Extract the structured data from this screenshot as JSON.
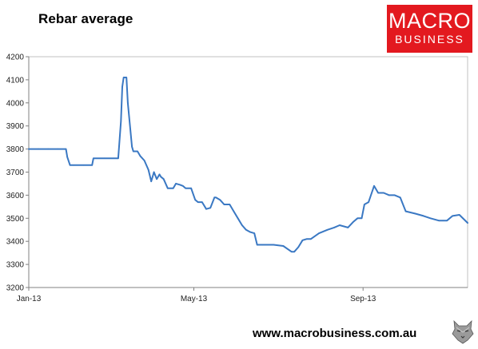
{
  "header": {
    "title": "Rebar average"
  },
  "logo": {
    "line1": "MACRO",
    "line2": "BUSINESS",
    "color": "#e3191f"
  },
  "footer": {
    "url": "www.macrobusiness.com.au"
  },
  "chart_data": {
    "type": "line",
    "title": "Rebar average",
    "xlabel": "",
    "ylabel": "",
    "ylim": [
      3200,
      4200
    ],
    "yticks": [
      3200,
      3300,
      3400,
      3500,
      3600,
      3700,
      3800,
      3900,
      4000,
      4100,
      4200
    ],
    "xlim": [
      "2013-01-01",
      "2013-11-16"
    ],
    "xticks": [
      {
        "label": "Jan-13",
        "date": "2013-01-01"
      },
      {
        "label": "May-13",
        "date": "2013-05-01"
      },
      {
        "label": "Sep-13",
        "date": "2013-09-01"
      }
    ],
    "grid": false,
    "legend": "none",
    "line_color": "#3a78c3",
    "series": [
      {
        "x": [
          "2013-01-01",
          "2013-01-08",
          "2013-01-15",
          "2013-01-22",
          "2013-01-28",
          "2013-01-29",
          "2013-01-31",
          "2013-02-03",
          "2013-02-10",
          "2013-02-16",
          "2013-02-17",
          "2013-02-25",
          "2013-03-04",
          "2013-03-06",
          "2013-03-07",
          "2013-03-09",
          "2013-03-10",
          "2013-03-11",
          "2013-03-13",
          "2013-03-14",
          "2013-03-17",
          "2013-03-18",
          "2013-03-21",
          "2013-03-23",
          "2013-03-26",
          "2013-03-29",
          "2013-03-31",
          "2013-04-02",
          "2013-04-04",
          "2013-04-06",
          "2013-04-07",
          "2013-04-09",
          "2013-04-12",
          "2013-04-16",
          "2013-04-18",
          "2013-04-21",
          "2013-04-23",
          "2013-04-25",
          "2013-04-29",
          "2013-05-02",
          "2013-05-04",
          "2013-05-07",
          "2013-05-10",
          "2013-05-13",
          "2013-05-16",
          "2013-05-17",
          "2013-05-20",
          "2013-05-23",
          "2013-05-27",
          "2013-05-30",
          "2013-06-02",
          "2013-06-05",
          "2013-06-08",
          "2013-06-11",
          "2013-06-14",
          "2013-06-16",
          "2013-06-20",
          "2013-06-22",
          "2013-06-28",
          "2013-07-05",
          "2013-07-11",
          "2013-07-13",
          "2013-07-16",
          "2013-07-19",
          "2013-07-22",
          "2013-07-25",
          "2013-07-31",
          "2013-08-06",
          "2013-08-11",
          "2013-08-15",
          "2013-08-21",
          "2013-08-25",
          "2013-08-28",
          "2013-08-31",
          "2013-09-02",
          "2013-09-05",
          "2013-09-09",
          "2013-09-12",
          "2013-09-16",
          "2013-09-20",
          "2013-09-24",
          "2013-09-28",
          "2013-10-02",
          "2013-10-09",
          "2013-10-15",
          "2013-10-20",
          "2013-10-26",
          "2013-10-29",
          "2013-11-01",
          "2013-11-05",
          "2013-11-10",
          "2013-11-16"
        ],
        "values": [
          3800,
          3800,
          3800,
          3800,
          3800,
          3765,
          3730,
          3730,
          3730,
          3730,
          3760,
          3760,
          3760,
          3760,
          3760,
          3920,
          4070,
          4110,
          4110,
          4000,
          3810,
          3790,
          3790,
          3770,
          3750,
          3710,
          3660,
          3700,
          3670,
          3690,
          3680,
          3670,
          3630,
          3630,
          3650,
          3645,
          3640,
          3630,
          3630,
          3580,
          3570,
          3570,
          3540,
          3545,
          3590,
          3590,
          3580,
          3560,
          3560,
          3530,
          3500,
          3470,
          3450,
          3440,
          3435,
          3385,
          3385,
          3385,
          3385,
          3380,
          3355,
          3355,
          3375,
          3405,
          3410,
          3410,
          3435,
          3450,
          3460,
          3470,
          3460,
          3485,
          3500,
          3500,
          3560,
          3570,
          3640,
          3610,
          3610,
          3600,
          3600,
          3590,
          3530,
          3520,
          3510,
          3500,
          3490,
          3490,
          3490,
          3510,
          3515,
          3480
        ]
      }
    ]
  }
}
